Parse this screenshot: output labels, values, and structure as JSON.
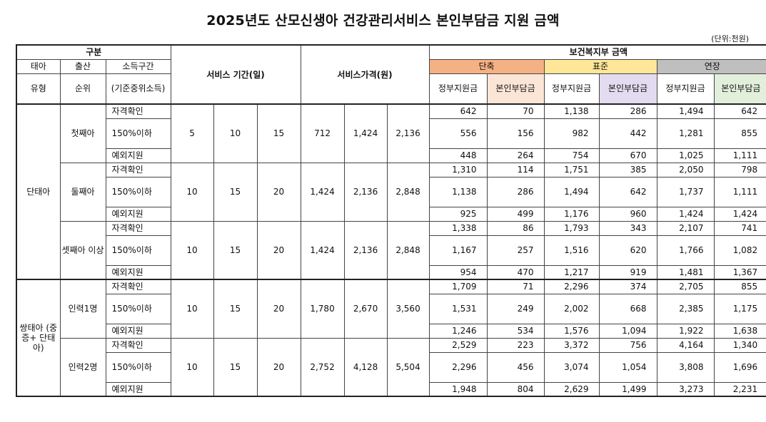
{
  "title": "2025년도 산모신생아 건강관리서비스 본인부담금 지원 금액",
  "unit": "(단위:천원)",
  "header": {
    "gubun": "구분",
    "taea": "태아",
    "chulsan": "출산",
    "sodeuk": "소득구간",
    "yuhyeong": "유형",
    "sunwi": "순위",
    "sodeuk_note": "(기준중위소득)",
    "service_period": "서비스 기간(일)",
    "service_price": "서비스가격(원)",
    "welfare_amount": "보건복지부 금액",
    "short": "단축",
    "standard": "표준",
    "extended": "연장",
    "gov_support": "정부지원금",
    "own_burden": "본인부담금"
  },
  "income_levels": [
    "자격확인",
    "150%이하",
    "예외지원"
  ],
  "groups": [
    {
      "type": "단태아",
      "subgroups": [
        {
          "order": "첫째아",
          "period": [
            "5",
            "10",
            "15"
          ],
          "price": [
            "712",
            "1,424",
            "2,136"
          ],
          "rows": [
            [
              "642",
              "70",
              "1,138",
              "286",
              "1,494",
              "642"
            ],
            [
              "556",
              "156",
              "982",
              "442",
              "1,281",
              "855"
            ],
            [
              "448",
              "264",
              "754",
              "670",
              "1,025",
              "1,111"
            ]
          ]
        },
        {
          "order": "둘째아",
          "period": [
            "10",
            "15",
            "20"
          ],
          "price": [
            "1,424",
            "2,136",
            "2,848"
          ],
          "rows": [
            [
              "1,310",
              "114",
              "1,751",
              "385",
              "2,050",
              "798"
            ],
            [
              "1,138",
              "286",
              "1,494",
              "642",
              "1,737",
              "1,111"
            ],
            [
              "925",
              "499",
              "1,176",
              "960",
              "1,424",
              "1,424"
            ]
          ]
        },
        {
          "order": "셋째아 이상",
          "period": [
            "10",
            "15",
            "20"
          ],
          "price": [
            "1,424",
            "2,136",
            "2,848"
          ],
          "rows": [
            [
              "1,338",
              "86",
              "1,793",
              "343",
              "2,107",
              "741"
            ],
            [
              "1,167",
              "257",
              "1,516",
              "620",
              "1,766",
              "1,082"
            ],
            [
              "954",
              "470",
              "1,217",
              "919",
              "1,481",
              "1,367"
            ]
          ]
        }
      ]
    },
    {
      "type": "쌍태아 (중증+ 단태아)",
      "subgroups": [
        {
          "order": "인력1명",
          "period": [
            "10",
            "15",
            "20"
          ],
          "price": [
            "1,780",
            "2,670",
            "3,560"
          ],
          "rows": [
            [
              "1,709",
              "71",
              "2,296",
              "374",
              "2,705",
              "855"
            ],
            [
              "1,531",
              "249",
              "2,002",
              "668",
              "2,385",
              "1,175"
            ],
            [
              "1,246",
              "534",
              "1,576",
              "1,094",
              "1,922",
              "1,638"
            ]
          ]
        },
        {
          "order": "인력2명",
          "period": [
            "10",
            "15",
            "20"
          ],
          "price": [
            "2,752",
            "4,128",
            "5,504"
          ],
          "rows": [
            [
              "2,529",
              "223",
              "3,372",
              "756",
              "4,164",
              "1,340"
            ],
            [
              "2,296",
              "456",
              "3,074",
              "1,054",
              "3,808",
              "1,696"
            ],
            [
              "1,948",
              "804",
              "2,629",
              "1,499",
              "3,273",
              "2,231"
            ]
          ]
        }
      ]
    }
  ],
  "colors": {
    "short_header": "#f4b183",
    "standard_header": "#ffe699",
    "extended_header": "#bfbfbf",
    "short_own": "#fbe5d6",
    "standard_own": "#e3dcf0",
    "extended_own": "#e2efda"
  }
}
